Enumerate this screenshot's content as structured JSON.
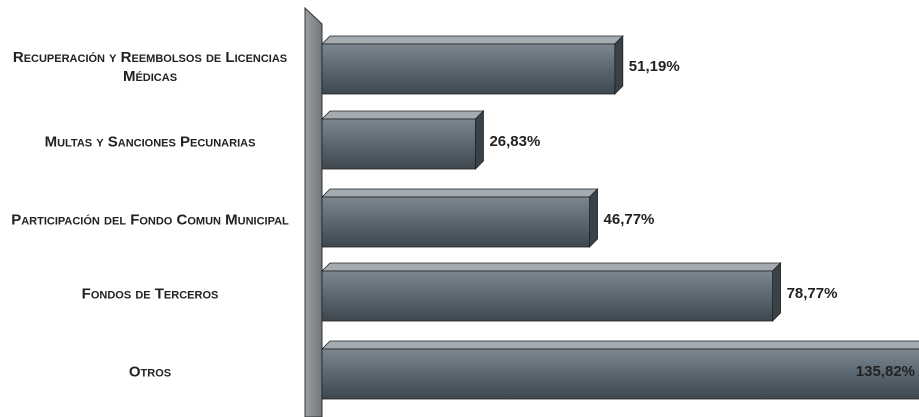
{
  "chart_data": {
    "type": "bar",
    "orientation": "horizontal",
    "categories": [
      "Recuperación y Reembolsos de Licencias Médicas",
      "Multas y Sanciones Pecunarias",
      "Participación del Fondo Comun Municipal",
      "Fondos de Terceros",
      "Otros"
    ],
    "values": [
      51.19,
      26.83,
      46.77,
      78.77,
      135.82
    ],
    "value_labels": [
      "51,19%",
      "26,83%",
      "46,77%",
      "78,77%",
      "135,82%"
    ],
    "color": "#5b6770",
    "xlim": [
      0,
      100
    ]
  }
}
